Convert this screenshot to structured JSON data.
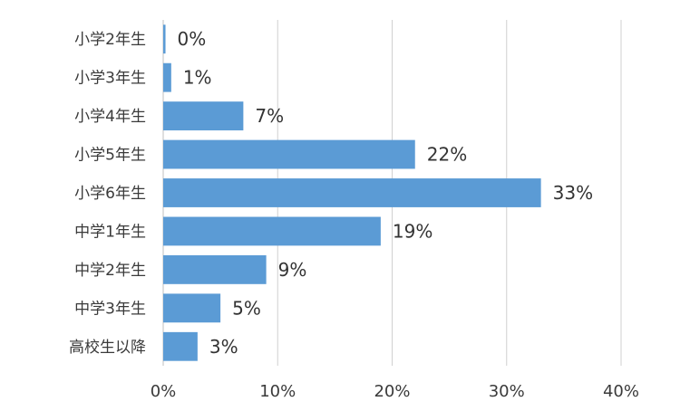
{
  "chart_data": {
    "type": "bar",
    "orientation": "horizontal",
    "categories": [
      "小学2年生",
      "小学3年生",
      "小学4年生",
      "小学5年生",
      "小学6年生",
      "中学1年生",
      "中学2年生",
      "中学3年生",
      "高校生以降"
    ],
    "values": [
      0.2,
      0.7,
      7,
      22,
      33,
      19,
      9,
      5,
      3
    ],
    "data_labels": [
      "0%",
      "1%",
      "7%",
      "22%",
      "33%",
      "19%",
      "9%",
      "5%",
      "3%"
    ],
    "x_ticks": [
      "0%",
      "10%",
      "20%",
      "30%",
      "40%"
    ],
    "xlim": [
      0,
      40
    ],
    "title": "",
    "xlabel": "",
    "ylabel": "",
    "grid": true,
    "legend": "none",
    "bar_color": "#5b9bd5"
  }
}
